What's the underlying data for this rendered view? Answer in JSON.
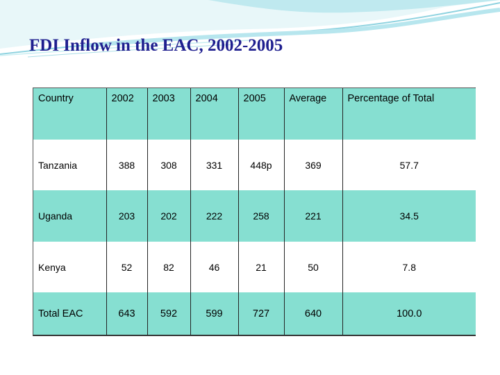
{
  "slide": {
    "title": "FDI Inflow in the EAC, 2002-2005"
  },
  "table": {
    "headers": [
      "Country",
      "2002",
      "2003",
      "2004",
      "2005",
      "Average",
      "Percentage of Total"
    ],
    "rows": [
      [
        "Tanzania",
        "388",
        "308",
        "331",
        "448p",
        "369",
        "57.7"
      ],
      [
        "Uganda",
        "203",
        "202",
        "222",
        "258",
        "221",
        "34.5"
      ],
      [
        "Kenya",
        "52",
        "82",
        "46",
        "21",
        "50",
        "7.8"
      ],
      [
        "Total EAC",
        "643",
        "592",
        "599",
        "727",
        "640",
        "100.0"
      ]
    ]
  },
  "colors": {
    "title": "#1f1f8f",
    "teal_row": "#86dfd1",
    "decor_light": "#c9eef2",
    "decor_mid": "#8fd3e0"
  }
}
